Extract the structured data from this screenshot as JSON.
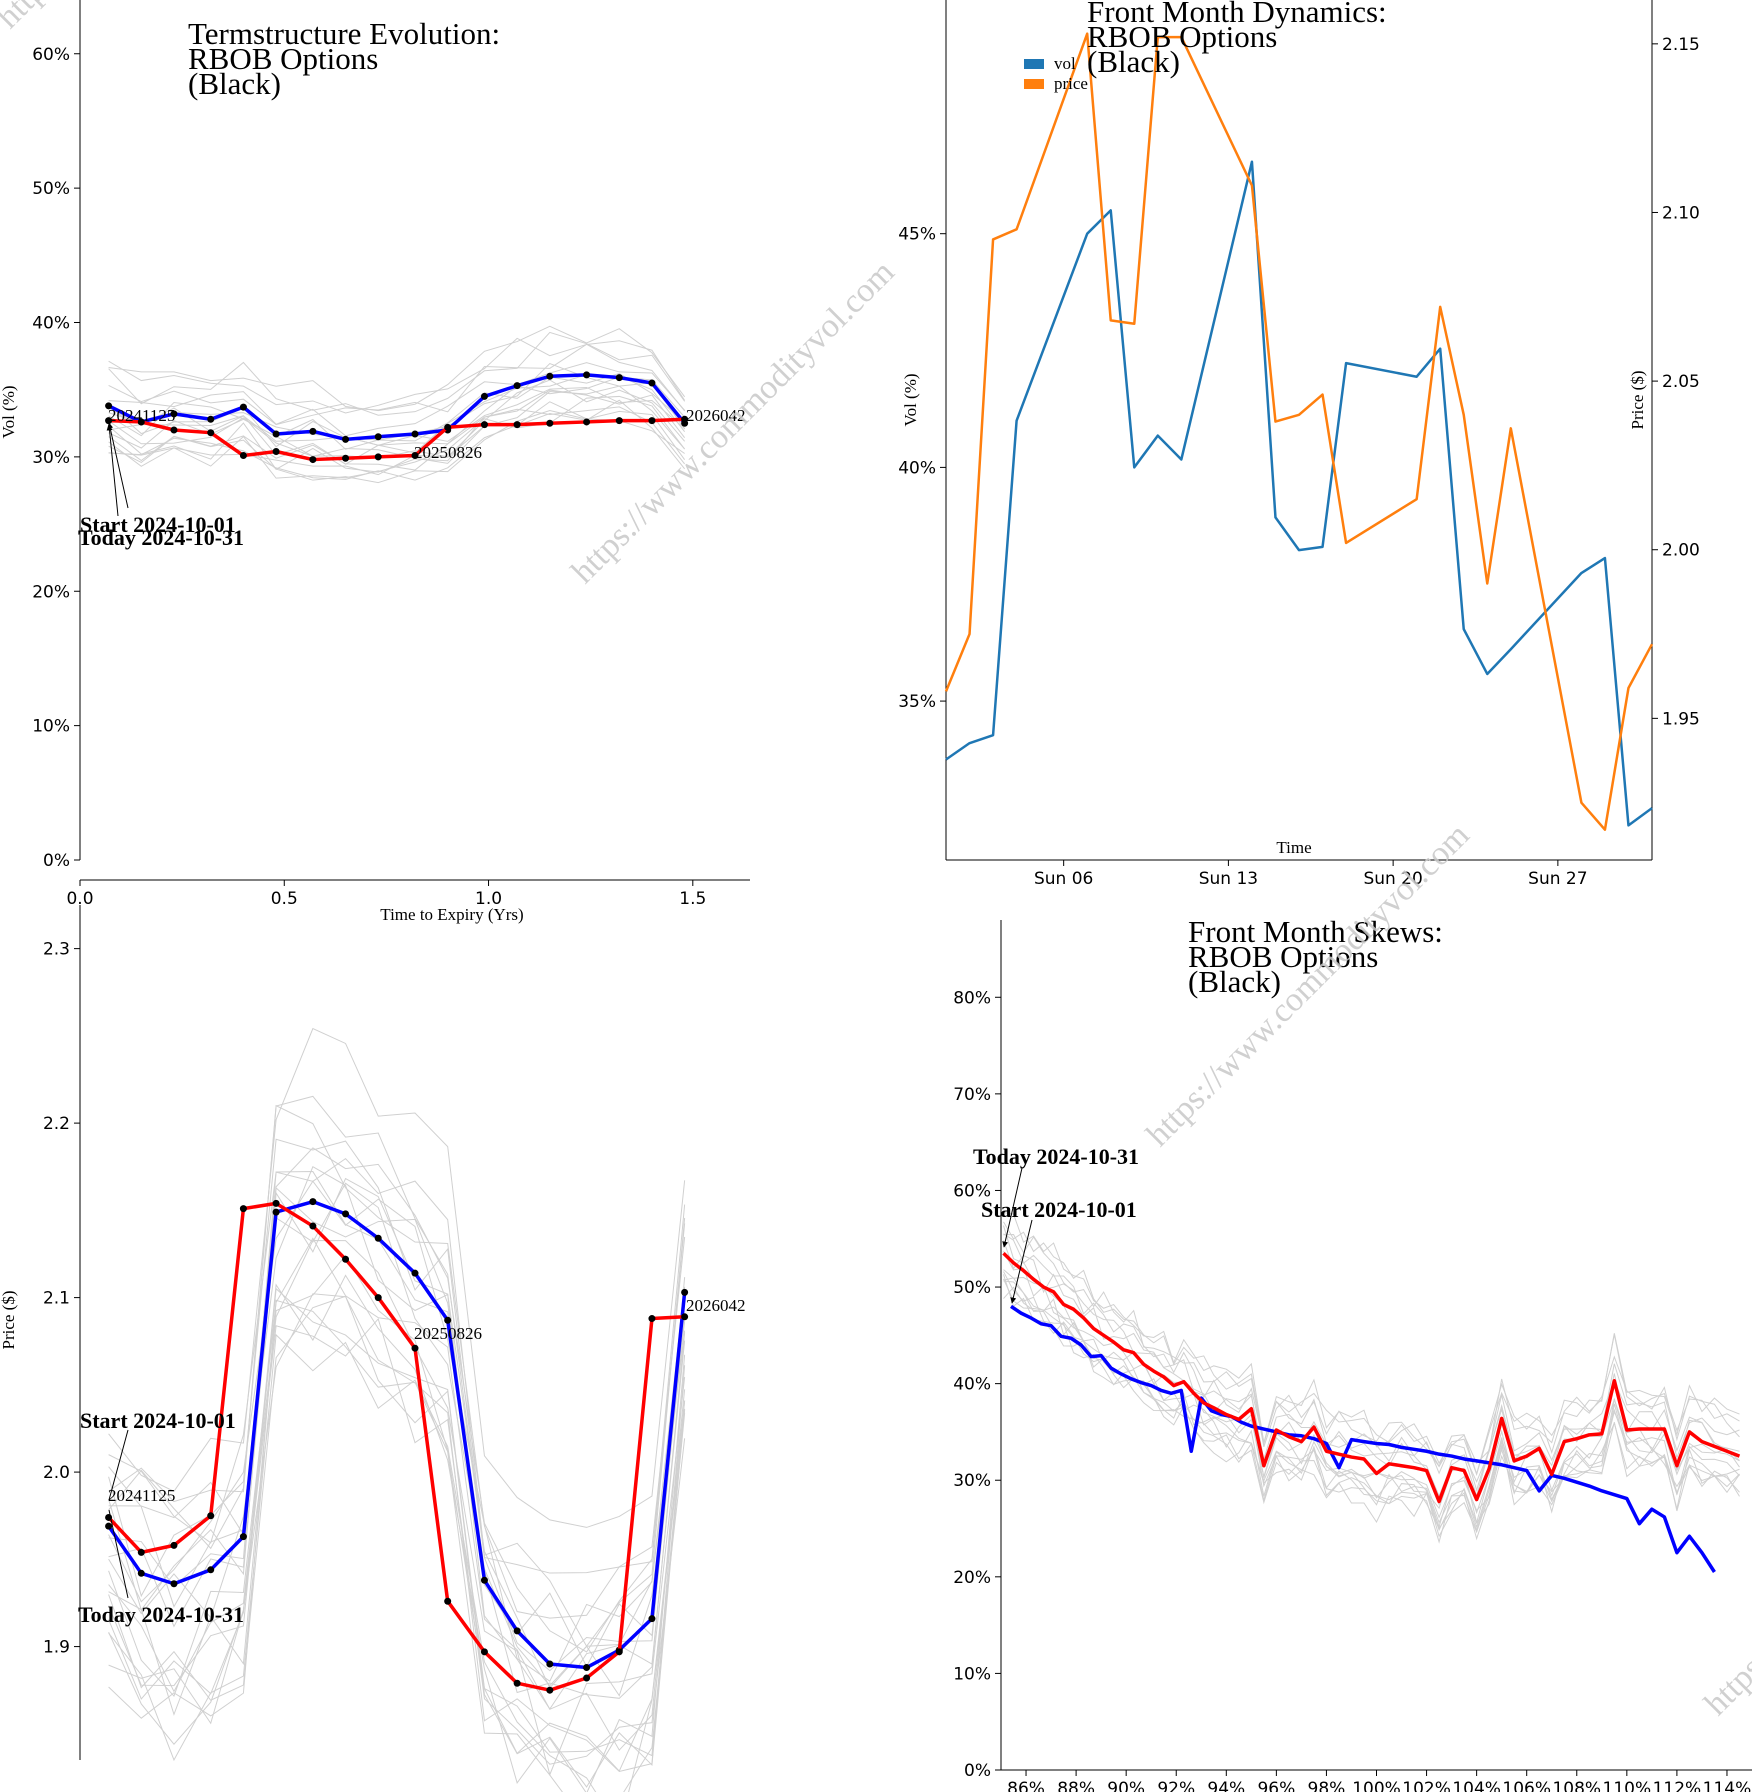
{
  "watermark": "https://www.commodityvol.com",
  "chart_data": [
    {
      "id": "termstructure",
      "type": "line",
      "title": [
        "Termstructure Evolution:",
        "RBOB Options",
        "(Black)"
      ],
      "xlabel": "Time to Expiry (Yrs)",
      "ylabel": "Vol (%)",
      "xlim": [
        0,
        1.64
      ],
      "ylim": [
        0,
        0.64
      ],
      "xticks": [
        0.0,
        0.5,
        1.0,
        1.5
      ],
      "xtick_labels": [
        "0.0",
        "0.5",
        "1.0",
        "1.5"
      ],
      "yticks": [
        0,
        0.1,
        0.2,
        0.3,
        0.4,
        0.5,
        0.6
      ],
      "ytick_labels": [
        "0%",
        "10%",
        "20%",
        "30%",
        "40%",
        "50%",
        "60%"
      ],
      "contract_labels": [
        "20241125",
        "20250826",
        "2026042"
      ],
      "annotations": [
        "Start 2024-10-01",
        "Today 2024-10-31"
      ],
      "series": [
        {
          "name": "Start 2024-10-01",
          "color": "#0000ff",
          "x": [
            0.07,
            0.15,
            0.23,
            0.32,
            0.4,
            0.48,
            0.57,
            0.65,
            0.73,
            0.82,
            0.9,
            0.99,
            1.07,
            1.15,
            1.24,
            1.32,
            1.4,
            1.48
          ],
          "y": [
            0.338,
            0.326,
            0.332,
            0.328,
            0.337,
            0.317,
            0.319,
            0.313,
            0.315,
            0.317,
            0.32,
            0.345,
            0.353,
            0.36,
            0.361,
            0.359,
            0.355,
            0.325
          ]
        },
        {
          "name": "Today 2024-10-31",
          "color": "#ff0000",
          "x": [
            0.07,
            0.15,
            0.23,
            0.32,
            0.4,
            0.48,
            0.57,
            0.65,
            0.73,
            0.82,
            0.9,
            0.99,
            1.07,
            1.15,
            1.24,
            1.32,
            1.4,
            1.48
          ],
          "y": [
            0.327,
            0.326,
            0.32,
            0.318,
            0.301,
            0.304,
            0.298,
            0.299,
            0.3,
            0.301,
            0.322,
            0.324,
            0.324,
            0.325,
            0.326,
            0.327,
            0.327,
            0.328
          ]
        }
      ]
    },
    {
      "id": "dynamics",
      "type": "line",
      "title": [
        "Front Month Dynamics:",
        "RBOB Options",
        "(Black)"
      ],
      "xlabel": "Time",
      "ylabel": "Vol (%)",
      "y2label": "Price ($)",
      "legend": [
        "vol",
        "price"
      ],
      "legend_position": "top-left",
      "x_start": "2024-10-01",
      "x_end": "2024-10-31",
      "xticks": [
        "2024-10-06",
        "2024-10-13",
        "2024-10-20",
        "2024-10-27"
      ],
      "xtick_labels": [
        "Sun 06",
        "Sun 13",
        "Sun 20",
        "Sun 27"
      ],
      "ylim": [
        0.316,
        0.5
      ],
      "yticks": [
        0.35,
        0.4,
        0.45
      ],
      "ytick_labels": [
        "35%",
        "40%",
        "45%"
      ],
      "y2lim": [
        1.908,
        2.163
      ],
      "y2ticks": [
        1.95,
        2.0,
        2.05,
        2.1,
        2.15
      ],
      "y2tick_labels": [
        "1.95",
        "2.00",
        "2.05",
        "2.10",
        "2.15"
      ],
      "series": [
        {
          "name": "vol",
          "color": "#1f77b4",
          "axis": "left",
          "x": [
            "2024-10-01",
            "2024-10-02",
            "2024-10-03",
            "2024-10-04",
            "2024-10-07",
            "2024-10-08",
            "2024-10-09",
            "2024-10-10",
            "2024-10-11",
            "2024-10-14",
            "2024-10-15",
            "2024-10-16",
            "2024-10-17",
            "2024-10-18",
            "2024-10-21",
            "2024-10-22",
            "2024-10-23",
            "2024-10-24",
            "2024-10-25",
            "2024-10-28",
            "2024-10-29",
            "2024-10-30",
            "2024-10-31"
          ],
          "y": [
            0.3375,
            0.341,
            0.3427,
            0.41,
            0.45,
            0.455,
            0.4,
            0.4068,
            0.4017,
            0.4654,
            0.3893,
            0.3823,
            0.383,
            0.4223,
            0.4194,
            0.4254,
            0.3654,
            0.3558,
            0.3611,
            0.3774,
            0.3806,
            0.3234,
            0.3271
          ]
        },
        {
          "name": "price",
          "color": "#ff7f0e",
          "axis": "right",
          "x": [
            "2024-10-01",
            "2024-10-02",
            "2024-10-03",
            "2024-10-04",
            "2024-10-07",
            "2024-10-08",
            "2024-10-09",
            "2024-10-10",
            "2024-10-11",
            "2024-10-14",
            "2024-10-15",
            "2024-10-16",
            "2024-10-17",
            "2024-10-18",
            "2024-10-21",
            "2024-10-22",
            "2024-10-23",
            "2024-10-24",
            "2024-10-25",
            "2024-10-28",
            "2024-10-29",
            "2024-10-30",
            "2024-10-31"
          ],
          "y": [
            1.958,
            1.975,
            2.092,
            2.095,
            2.153,
            2.068,
            2.067,
            2.152,
            2.152,
            2.108,
            2.038,
            2.04,
            2.046,
            2.002,
            2.015,
            2.072,
            2.04,
            1.99,
            2.036,
            1.925,
            1.917,
            1.959,
            1.972
          ]
        }
      ]
    },
    {
      "id": "forward",
      "type": "line",
      "ylabel": "Price ($)",
      "xlim": [
        0,
        1.64
      ],
      "ylim": [
        1.835,
        2.325
      ],
      "yticks": [
        1.9,
        2.0,
        2.1,
        2.2,
        2.3
      ],
      "ytick_labels": [
        "1.9",
        "2.0",
        "2.1",
        "2.2",
        "2.3"
      ],
      "contract_labels": [
        "20241125",
        "20250826",
        "2026042"
      ],
      "annotations": [
        "Start 2024-10-01",
        "Today 2024-10-31"
      ],
      "series": [
        {
          "name": "Start 2024-10-01",
          "color": "#0000ff",
          "x": [
            0.07,
            0.15,
            0.23,
            0.32,
            0.4,
            0.48,
            0.57,
            0.65,
            0.73,
            0.82,
            0.9,
            0.99,
            1.07,
            1.15,
            1.24,
            1.32,
            1.4,
            1.48
          ],
          "y": [
            1.969,
            1.942,
            1.936,
            1.944,
            1.963,
            2.149,
            2.155,
            2.148,
            2.134,
            2.114,
            2.087,
            1.938,
            1.909,
            1.89,
            1.888,
            1.898,
            1.916,
            2.103
          ]
        },
        {
          "name": "Today 2024-10-31",
          "color": "#ff0000",
          "x": [
            0.07,
            0.15,
            0.23,
            0.32,
            0.4,
            0.48,
            0.57,
            0.65,
            0.73,
            0.82,
            0.9,
            0.99,
            1.07,
            1.15,
            1.24,
            1.32,
            1.4,
            1.48
          ],
          "y": [
            1.974,
            1.954,
            1.958,
            1.975,
            2.151,
            2.154,
            2.141,
            2.122,
            2.1,
            2.071,
            1.926,
            1.897,
            1.879,
            1.875,
            1.882,
            1.897,
            2.088,
            2.089
          ]
        }
      ]
    },
    {
      "id": "skews",
      "type": "line",
      "title": [
        "Front Month Skews:",
        "RBOB Options",
        "(Black)"
      ],
      "xlim": [
        0.85,
        1.15
      ],
      "ylim": [
        0,
        0.88
      ],
      "xticks": [
        0.86,
        0.88,
        0.9,
        0.92,
        0.94,
        0.96,
        0.98,
        1.0,
        1.02,
        1.04,
        1.06,
        1.08,
        1.1,
        1.12,
        1.14
      ],
      "xtick_labels": [
        "86%",
        "88%",
        "90%",
        "92%",
        "94%",
        "96%",
        "98%",
        "100%",
        "102%",
        "104%",
        "106%",
        "108%",
        "110%",
        "112%",
        "114%"
      ],
      "yticks": [
        0,
        0.1,
        0.2,
        0.3,
        0.4,
        0.5,
        0.6,
        0.7,
        0.8
      ],
      "ytick_labels": [
        "0%",
        "10%",
        "20%",
        "30%",
        "40%",
        "50%",
        "60%",
        "70%",
        "80%"
      ],
      "annotations": [
        "Today 2024-10-31",
        "Start 2024-10-01"
      ],
      "series": [
        {
          "name": "Start 2024-10-01",
          "color": "#0000ff",
          "x": [
            0.854,
            0.858,
            0.862,
            0.866,
            0.87,
            0.874,
            0.878,
            0.882,
            0.886,
            0.89,
            0.894,
            0.898,
            0.902,
            0.906,
            0.91,
            0.914,
            0.918,
            0.922,
            0.926,
            0.93,
            0.934,
            0.938,
            0.942,
            0.946,
            0.95,
            0.955,
            0.96,
            0.965,
            0.97,
            0.975,
            0.98,
            0.985,
            0.99,
            0.995,
            1.0,
            1.005,
            1.01,
            1.015,
            1.02,
            1.025,
            1.03,
            1.035,
            1.04,
            1.045,
            1.05,
            1.055,
            1.06,
            1.065,
            1.07,
            1.075,
            1.08,
            1.085,
            1.09,
            1.095,
            1.1,
            1.105,
            1.11,
            1.115,
            1.12,
            1.125,
            1.13,
            1.135
          ],
          "y": [
            0.48,
            0.473,
            0.468,
            0.462,
            0.46,
            0.449,
            0.447,
            0.44,
            0.428,
            0.429,
            0.416,
            0.41,
            0.405,
            0.401,
            0.398,
            0.393,
            0.39,
            0.393,
            0.33,
            0.385,
            0.372,
            0.368,
            0.366,
            0.36,
            0.356,
            0.353,
            0.35,
            0.347,
            0.346,
            0.343,
            0.338,
            0.313,
            0.342,
            0.34,
            0.338,
            0.337,
            0.334,
            0.332,
            0.33,
            0.327,
            0.325,
            0.322,
            0.32,
            0.318,
            0.316,
            0.313,
            0.31,
            0.289,
            0.305,
            0.302,
            0.298,
            0.294,
            0.289,
            0.285,
            0.281,
            0.255,
            0.27,
            0.262,
            0.225,
            0.242,
            0.225,
            0.205
          ]
        },
        {
          "name": "Today 2024-10-31",
          "color": "#ff0000",
          "x": [
            0.851,
            0.855,
            0.859,
            0.863,
            0.867,
            0.871,
            0.875,
            0.879,
            0.883,
            0.887,
            0.891,
            0.895,
            0.899,
            0.903,
            0.907,
            0.911,
            0.915,
            0.919,
            0.923,
            0.927,
            0.931,
            0.935,
            0.94,
            0.945,
            0.95,
            0.955,
            0.96,
            0.965,
            0.97,
            0.975,
            0.98,
            0.985,
            0.99,
            0.995,
            1.0,
            1.005,
            1.01,
            1.015,
            1.02,
            1.025,
            1.03,
            1.035,
            1.04,
            1.045,
            1.05,
            1.055,
            1.06,
            1.065,
            1.07,
            1.075,
            1.08,
            1.085,
            1.09,
            1.095,
            1.1,
            1.105,
            1.11,
            1.115,
            1.12,
            1.125,
            1.13,
            1.135,
            1.14,
            1.145
          ],
          "y": [
            0.535,
            0.525,
            0.517,
            0.508,
            0.5,
            0.495,
            0.482,
            0.477,
            0.468,
            0.457,
            0.45,
            0.443,
            0.435,
            0.432,
            0.42,
            0.413,
            0.407,
            0.398,
            0.402,
            0.39,
            0.38,
            0.375,
            0.368,
            0.363,
            0.374,
            0.315,
            0.352,
            0.345,
            0.34,
            0.355,
            0.33,
            0.327,
            0.324,
            0.322,
            0.307,
            0.317,
            0.315,
            0.313,
            0.31,
            0.278,
            0.313,
            0.31,
            0.28,
            0.312,
            0.364,
            0.32,
            0.325,
            0.333,
            0.306,
            0.34,
            0.343,
            0.347,
            0.348,
            0.403,
            0.352,
            0.353,
            0.353,
            0.353,
            0.315,
            0.35,
            0.34,
            0.335,
            0.33,
            0.325
          ]
        }
      ]
    }
  ]
}
